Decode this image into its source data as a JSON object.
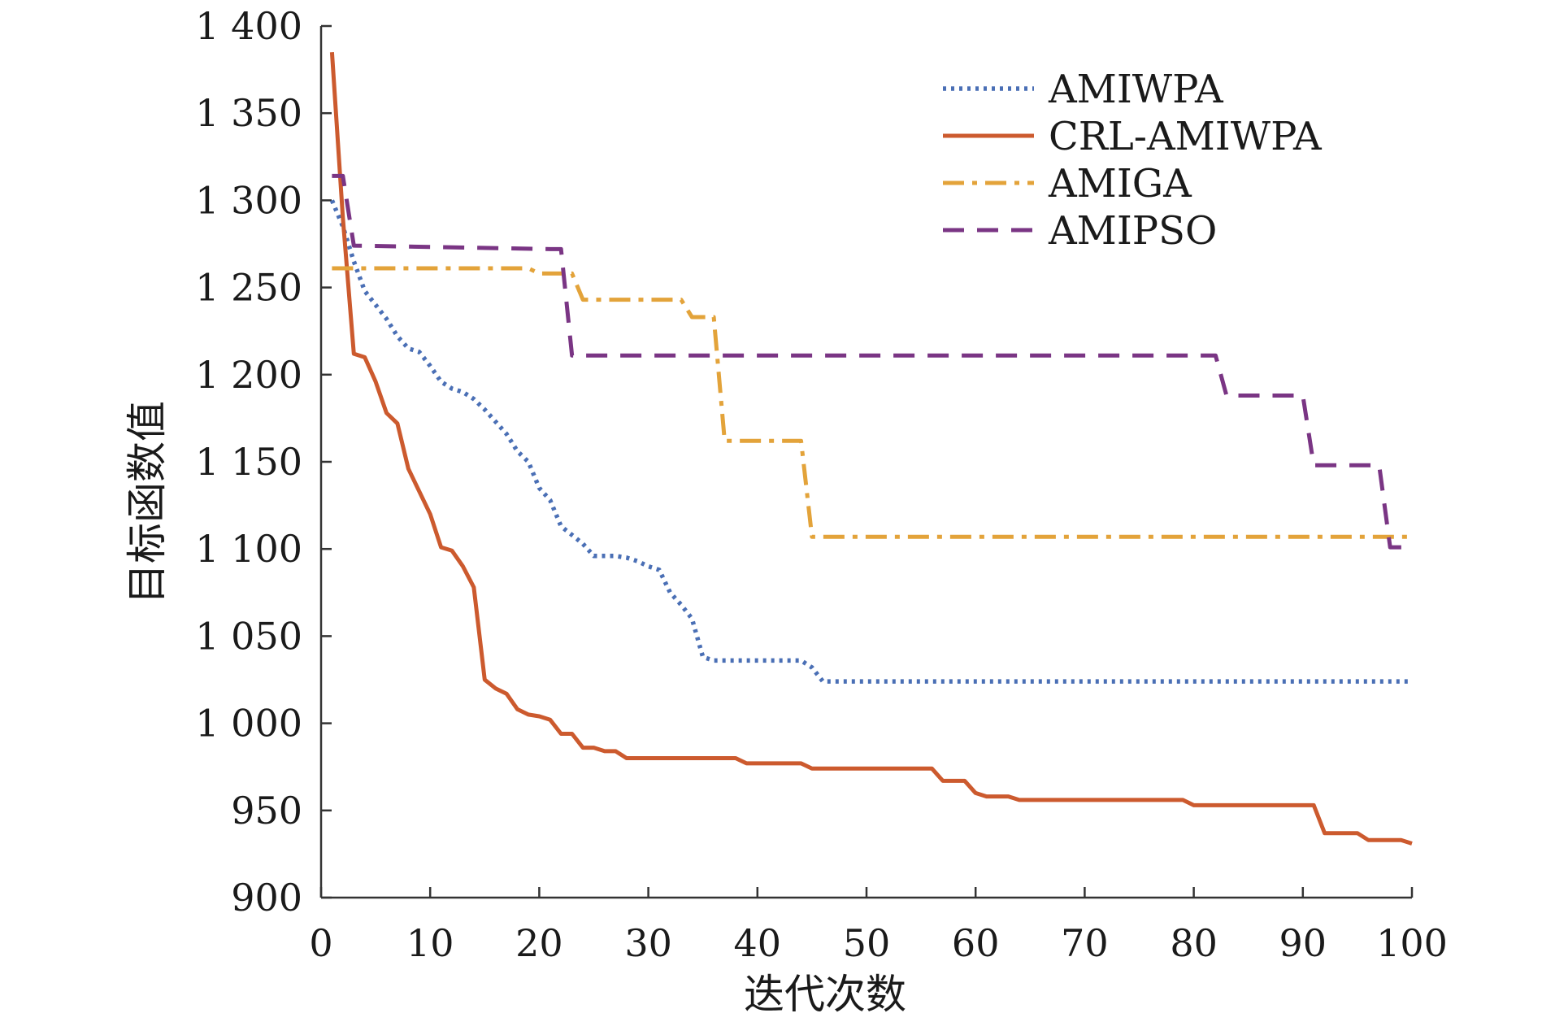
{
  "chart_data": {
    "type": "line",
    "xlabel": "迭代次数",
    "ylabel": "目标函数值",
    "xlim": [
      0,
      100
    ],
    "ylim": [
      900,
      1400
    ],
    "xticks": [
      0,
      10,
      20,
      30,
      40,
      50,
      60,
      70,
      80,
      90,
      100
    ],
    "yticks": [
      900,
      950,
      1000,
      1050,
      1100,
      1150,
      1200,
      1250,
      1300,
      1350,
      1400
    ],
    "xtick_labels": [
      "0",
      "10",
      "20",
      "30",
      "40",
      "50",
      "60",
      "70",
      "80",
      "90",
      "100"
    ],
    "ytick_labels": [
      "900",
      "950",
      "1 000",
      "1 050",
      "1 100",
      "1 150",
      "1 200",
      "1 250",
      "1 300",
      "1 350",
      "1 400"
    ],
    "grid": false,
    "legend_position": "top-right",
    "series": [
      {
        "name": "AMIWPA",
        "color": "#4a6fb5",
        "style": "dotted",
        "points": [
          [
            1,
            1300
          ],
          [
            2,
            1285
          ],
          [
            3,
            1265
          ],
          [
            4,
            1248
          ],
          [
            5,
            1240
          ],
          [
            6,
            1232
          ],
          [
            7,
            1222
          ],
          [
            8,
            1215
          ],
          [
            9,
            1213
          ],
          [
            10,
            1205
          ],
          [
            11,
            1196
          ],
          [
            12,
            1192
          ],
          [
            13,
            1190
          ],
          [
            14,
            1186
          ],
          [
            15,
            1180
          ],
          [
            16,
            1173
          ],
          [
            17,
            1166
          ],
          [
            18,
            1156
          ],
          [
            19,
            1150
          ],
          [
            20,
            1135
          ],
          [
            21,
            1128
          ],
          [
            22,
            1113
          ],
          [
            23,
            1108
          ],
          [
            24,
            1103
          ],
          [
            25,
            1096
          ],
          [
            26,
            1096
          ],
          [
            27,
            1096
          ],
          [
            28,
            1095
          ],
          [
            29,
            1093
          ],
          [
            30,
            1090
          ],
          [
            31,
            1088
          ],
          [
            32,
            1075
          ],
          [
            33,
            1068
          ],
          [
            34,
            1060
          ],
          [
            35,
            1038
          ],
          [
            36,
            1036
          ],
          [
            37,
            1036
          ],
          [
            38,
            1036
          ],
          [
            39,
            1036
          ],
          [
            40,
            1036
          ],
          [
            41,
            1036
          ],
          [
            42,
            1036
          ],
          [
            43,
            1036
          ],
          [
            44,
            1036
          ],
          [
            45,
            1032
          ],
          [
            46,
            1024
          ],
          [
            50,
            1024
          ],
          [
            60,
            1024
          ],
          [
            70,
            1024
          ],
          [
            80,
            1024
          ],
          [
            90,
            1024
          ],
          [
            100,
            1024
          ]
        ]
      },
      {
        "name": "CRL-AMIWPA",
        "color": "#cc5a2e",
        "style": "solid",
        "points": [
          [
            1,
            1385
          ],
          [
            2,
            1290
          ],
          [
            3,
            1212
          ],
          [
            4,
            1210
          ],
          [
            5,
            1196
          ],
          [
            6,
            1178
          ],
          [
            7,
            1172
          ],
          [
            8,
            1146
          ],
          [
            9,
            1133
          ],
          [
            10,
            1120
          ],
          [
            11,
            1101
          ],
          [
            12,
            1099
          ],
          [
            13,
            1090
          ],
          [
            14,
            1078
          ],
          [
            15,
            1025
          ],
          [
            16,
            1020
          ],
          [
            17,
            1017
          ],
          [
            18,
            1008
          ],
          [
            19,
            1005
          ],
          [
            20,
            1004
          ],
          [
            21,
            1002
          ],
          [
            22,
            994
          ],
          [
            23,
            994
          ],
          [
            24,
            986
          ],
          [
            25,
            986
          ],
          [
            26,
            984
          ],
          [
            27,
            984
          ],
          [
            28,
            980
          ],
          [
            38,
            980
          ],
          [
            39,
            977
          ],
          [
            44,
            977
          ],
          [
            45,
            974
          ],
          [
            56,
            974
          ],
          [
            57,
            967
          ],
          [
            59,
            967
          ],
          [
            60,
            960
          ],
          [
            61,
            958
          ],
          [
            63,
            958
          ],
          [
            64,
            956
          ],
          [
            79,
            956
          ],
          [
            80,
            953
          ],
          [
            91,
            953
          ],
          [
            92,
            937
          ],
          [
            95,
            937
          ],
          [
            96,
            933
          ],
          [
            99,
            933
          ],
          [
            100,
            931
          ]
        ]
      },
      {
        "name": "AMIGA",
        "color": "#e3a33a",
        "style": "dashdot",
        "points": [
          [
            1,
            1261
          ],
          [
            19,
            1261
          ],
          [
            20,
            1258
          ],
          [
            23,
            1258
          ],
          [
            24,
            1243
          ],
          [
            33,
            1243
          ],
          [
            34,
            1233
          ],
          [
            36,
            1233
          ],
          [
            37,
            1162
          ],
          [
            44,
            1162
          ],
          [
            45,
            1107
          ],
          [
            100,
            1107
          ]
        ]
      },
      {
        "name": "AMIPSO",
        "color": "#7a3584",
        "style": "dashed",
        "points": [
          [
            1,
            1314
          ],
          [
            2,
            1314
          ],
          [
            3,
            1274
          ],
          [
            21,
            1272
          ],
          [
            22,
            1272
          ],
          [
            23,
            1211
          ],
          [
            82,
            1211
          ],
          [
            83,
            1188
          ],
          [
            90,
            1188
          ],
          [
            91,
            1148
          ],
          [
            93,
            1148
          ],
          [
            94,
            1148
          ],
          [
            96,
            1148
          ],
          [
            97,
            1148
          ],
          [
            98,
            1101
          ],
          [
            100,
            1101
          ]
        ]
      }
    ]
  }
}
